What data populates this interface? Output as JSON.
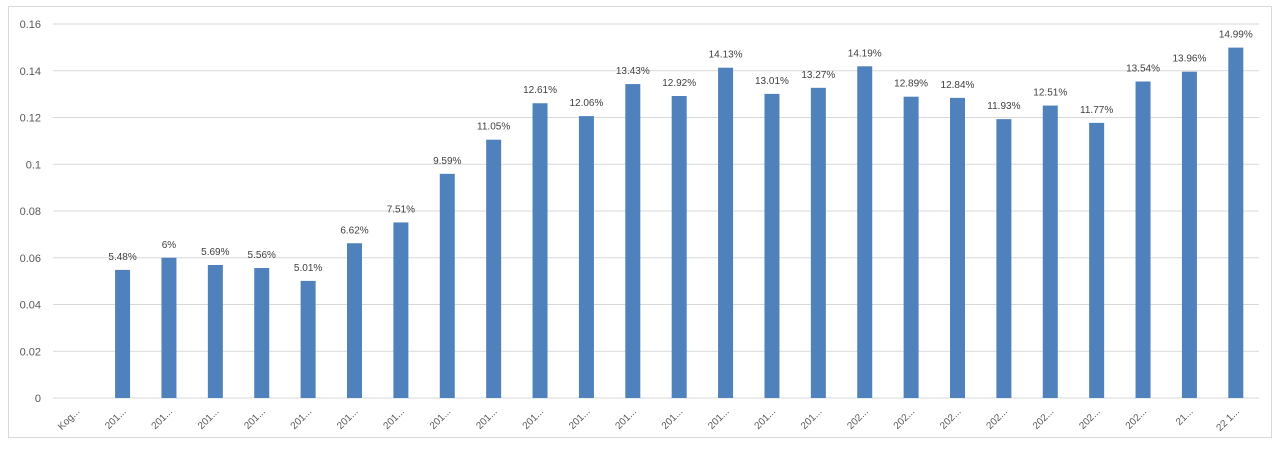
{
  "chart_data": {
    "type": "bar",
    "categories": [
      "Kog...",
      "201...",
      "201...",
      "201...",
      "201...",
      "201...",
      "201...",
      "201...",
      "201...",
      "201...",
      "201...",
      "201...",
      "201...",
      "201...",
      "201...",
      "201...",
      "201...",
      "202...",
      "202...",
      "202...",
      "202...",
      "202...",
      "202...",
      "202...",
      "21...",
      "22 1..."
    ],
    "values": [
      null,
      0.0548,
      0.06,
      0.0569,
      0.0556,
      0.0501,
      0.0662,
      0.0751,
      0.0959,
      0.1105,
      0.1261,
      0.1206,
      0.1343,
      0.1292,
      0.1413,
      0.1301,
      0.1327,
      0.1419,
      0.1289,
      0.1284,
      0.1193,
      0.1251,
      0.1177,
      0.1354,
      0.1396,
      0.1499
    ],
    "data_labels": [
      "",
      "5.48%",
      "6%",
      "5.69%",
      "5.56%",
      "5.01%",
      "6.62%",
      "7.51%",
      "9.59%",
      "11.05%",
      "12.61%",
      "12.06%",
      "13.43%",
      "12.92%",
      "14.13%",
      "13.01%",
      "13.27%",
      "14.19%",
      "12.89%",
      "12.84%",
      "11.93%",
      "12.51%",
      "11.77%",
      "13.54%",
      "13.96%",
      "14.99%"
    ],
    "yticks": [
      "0",
      "0.02",
      "0.04",
      "0.06",
      "0.08",
      "0.1",
      "0.12",
      "0.14",
      "0.16"
    ],
    "ylim": [
      0,
      0.16
    ],
    "grid": true,
    "bar_color": "#4f81bd",
    "title": "",
    "xlabel": "",
    "ylabel": ""
  }
}
